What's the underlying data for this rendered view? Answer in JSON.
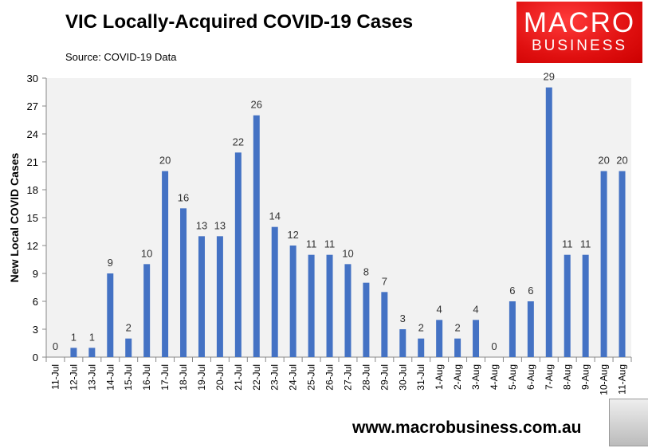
{
  "chart_data": {
    "type": "bar",
    "title": "VIC Locally-Acquired COVID-19 Cases",
    "subtitle": "Source: COVID-19 Data",
    "xlabel": "",
    "ylabel": "New Local COVID Cases",
    "ylim": [
      0,
      30
    ],
    "yticks": [
      0,
      3,
      6,
      9,
      12,
      15,
      18,
      21,
      24,
      27,
      30
    ],
    "grid": false,
    "bar_color": "#4472c4",
    "plot_background": "#f2f2f2",
    "categories": [
      "11-Jul",
      "12-Jul",
      "13-Jul",
      "14-Jul",
      "15-Jul",
      "16-Jul",
      "17-Jul",
      "18-Jul",
      "19-Jul",
      "20-Jul",
      "21-Jul",
      "22-Jul",
      "23-Jul",
      "24-Jul",
      "25-Jul",
      "26-Jul",
      "27-Jul",
      "28-Jul",
      "29-Jul",
      "30-Jul",
      "31-Jul",
      "1-Aug",
      "2-Aug",
      "3-Aug",
      "4-Aug",
      "5-Aug",
      "6-Aug",
      "7-Aug",
      "8-Aug",
      "9-Aug",
      "10-Aug",
      "11-Aug"
    ],
    "values": [
      0,
      1,
      1,
      9,
      2,
      10,
      20,
      16,
      13,
      13,
      22,
      26,
      14,
      12,
      11,
      11,
      10,
      8,
      7,
      3,
      2,
      4,
      2,
      4,
      0,
      6,
      6,
      29,
      11,
      11,
      20,
      20
    ]
  },
  "logo": {
    "line1": "MACRO",
    "line2": "BUSINESS",
    "color": "#e8161b"
  },
  "footer": {
    "url": "www.macrobusiness.com.au"
  }
}
